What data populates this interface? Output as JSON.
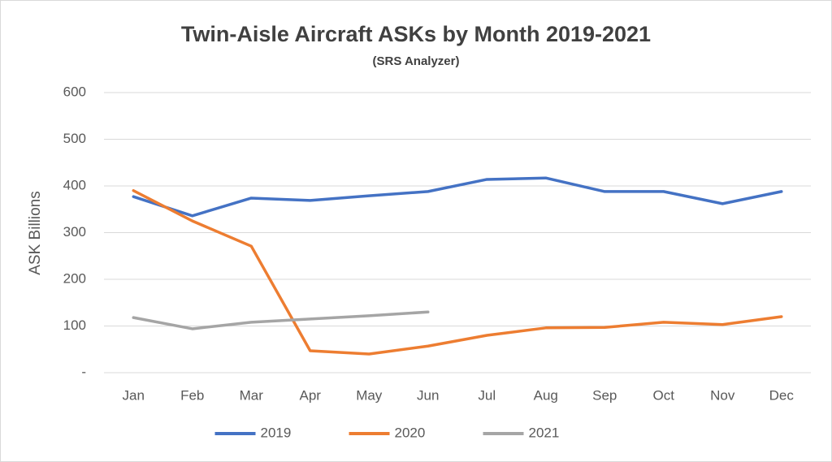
{
  "chart_data": {
    "type": "line",
    "title": "Twin-Aisle Aircraft ASKs by Month 2019-2021",
    "subtitle": "(SRS Analyzer)",
    "y_label": "ASK Billions",
    "categories": [
      "Jan",
      "Feb",
      "Mar",
      "Apr",
      "May",
      "Jun",
      "Jul",
      "Aug",
      "Sep",
      "Oct",
      "Nov",
      "Dec"
    ],
    "series": [
      {
        "name": "2019",
        "color": "#4472c4",
        "values": [
          377,
          336,
          374,
          369,
          379,
          388,
          414,
          417,
          388,
          388,
          362,
          388
        ]
      },
      {
        "name": "2020",
        "color": "#ed7d31",
        "values": [
          390,
          325,
          271,
          47,
          40,
          57,
          80,
          96,
          97,
          108,
          103,
          120
        ]
      },
      {
        "name": "2021",
        "color": "#a5a5a5",
        "values": [
          118,
          94,
          108,
          115,
          122,
          130,
          null,
          null,
          null,
          null,
          null,
          null
        ]
      }
    ],
    "ylim": [
      0,
      600
    ],
    "yticks": [
      {
        "value": 0,
        "label": "-"
      },
      100,
      200,
      300,
      400,
      500,
      600
    ],
    "grid": true,
    "legend": "bottom"
  }
}
